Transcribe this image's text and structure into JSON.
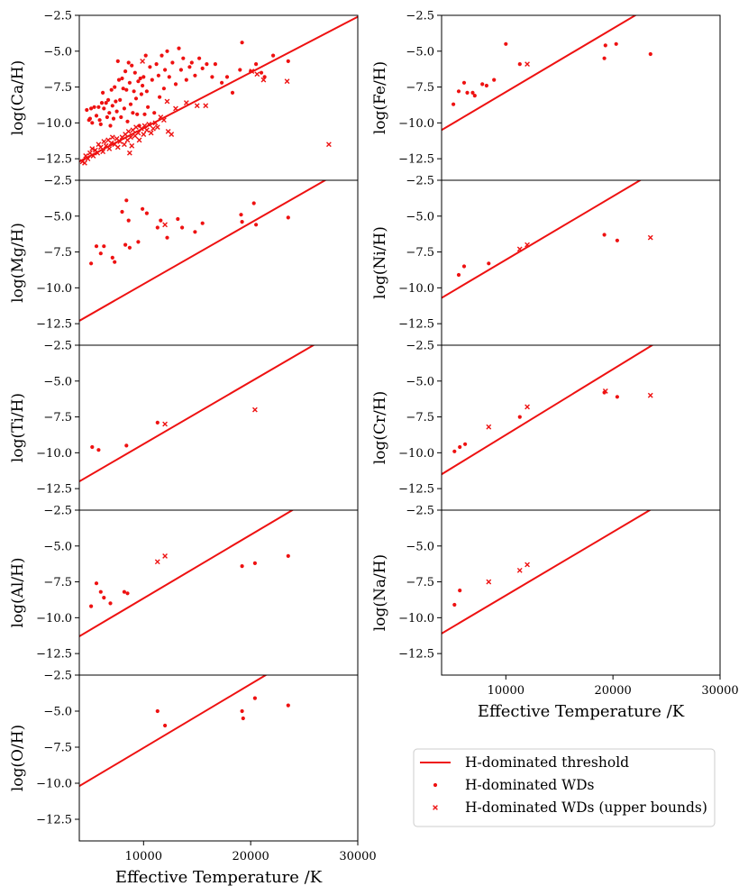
{
  "legend": {
    "threshold_label": "H-dominated threshold",
    "points_label": "H-dominated WDs",
    "upper_label": "H-dominated WDs (upper bounds)"
  },
  "colors": {
    "marker": "#ee1111",
    "line": "#ee1111",
    "axis": "#000000"
  },
  "chart_data": [
    {
      "type": "scatter",
      "id": "ca",
      "ylabel": "log(Ca/H)",
      "xlabel": "",
      "xlim": [
        4000,
        30000
      ],
      "ylim": [
        -14,
        -2.5
      ],
      "yticks": [
        -2.5,
        -5.0,
        -7.5,
        -10.0,
        -12.5
      ],
      "xticks": [],
      "threshold": [
        [
          4000,
          -12.7
        ],
        [
          30000,
          -2.6
        ]
      ],
      "points": [
        [
          4700,
          -9.1
        ],
        [
          4900,
          -9.8
        ],
        [
          5000,
          -9.7
        ],
        [
          5200,
          -10.0
        ],
        [
          5100,
          -9.0
        ],
        [
          5400,
          -8.9
        ],
        [
          5600,
          -9.5
        ],
        [
          5800,
          -8.9
        ],
        [
          5900,
          -9.8
        ],
        [
          6000,
          -10.1
        ],
        [
          6100,
          -8.6
        ],
        [
          6200,
          -7.9
        ],
        [
          6300,
          -9.0
        ],
        [
          6500,
          -8.6
        ],
        [
          6600,
          -9.6
        ],
        [
          6700,
          -8.4
        ],
        [
          6800,
          -9.3
        ],
        [
          6900,
          -10.2
        ],
        [
          7000,
          -7.7
        ],
        [
          7100,
          -8.8
        ],
        [
          7200,
          -9.7
        ],
        [
          7300,
          -7.5
        ],
        [
          7400,
          -8.5
        ],
        [
          7500,
          -9.2
        ],
        [
          7600,
          -5.7
        ],
        [
          7700,
          -7.0
        ],
        [
          7800,
          -8.4
        ],
        [
          7900,
          -9.6
        ],
        [
          8000,
          -6.9
        ],
        [
          8100,
          -7.6
        ],
        [
          8200,
          -9.0
        ],
        [
          8300,
          -6.4
        ],
        [
          8400,
          -7.7
        ],
        [
          8500,
          -9.9
        ],
        [
          8600,
          -5.8
        ],
        [
          8700,
          -7.2
        ],
        [
          8800,
          -8.7
        ],
        [
          8900,
          -6.0
        ],
        [
          9000,
          -9.3
        ],
        [
          9100,
          -7.8
        ],
        [
          9200,
          -6.5
        ],
        [
          9300,
          -8.3
        ],
        [
          9400,
          -9.4
        ],
        [
          9500,
          -7.1
        ],
        [
          9600,
          -10.2
        ],
        [
          9700,
          -6.9
        ],
        [
          9800,
          -8.0
        ],
        [
          9900,
          -7.4
        ],
        [
          10000,
          -6.8
        ],
        [
          10100,
          -9.4
        ],
        [
          10200,
          -5.3
        ],
        [
          10300,
          -7.8
        ],
        [
          10400,
          -8.9
        ],
        [
          10600,
          -6.1
        ],
        [
          10800,
          -7.0
        ],
        [
          11000,
          -9.3
        ],
        [
          11200,
          -5.9
        ],
        [
          11400,
          -6.7
        ],
        [
          11500,
          -8.2
        ],
        [
          11700,
          -5.3
        ],
        [
          11900,
          -7.6
        ],
        [
          12000,
          -6.3
        ],
        [
          12200,
          -5.0
        ],
        [
          12400,
          -6.8
        ],
        [
          12700,
          -5.8
        ],
        [
          13000,
          -7.3
        ],
        [
          13300,
          -4.8
        ],
        [
          13500,
          -6.3
        ],
        [
          13700,
          -5.5
        ],
        [
          14000,
          -7.0
        ],
        [
          14300,
          -6.1
        ],
        [
          14500,
          -5.8
        ],
        [
          14800,
          -6.7
        ],
        [
          15200,
          -5.5
        ],
        [
          15500,
          -6.2
        ],
        [
          15900,
          -5.9
        ],
        [
          16400,
          -6.8
        ],
        [
          16700,
          -5.9
        ],
        [
          17300,
          -7.2
        ],
        [
          17800,
          -6.8
        ],
        [
          18300,
          -7.9
        ],
        [
          19000,
          -6.3
        ],
        [
          19200,
          -4.4
        ],
        [
          20000,
          -6.4
        ],
        [
          20500,
          -5.9
        ],
        [
          21000,
          -6.5
        ],
        [
          21300,
          -6.8
        ],
        [
          22100,
          -5.3
        ],
        [
          23500,
          -5.7
        ]
      ],
      "upper": [
        [
          4300,
          -12.7
        ],
        [
          4500,
          -12.8
        ],
        [
          4600,
          -12.3
        ],
        [
          4800,
          -12.5
        ],
        [
          5000,
          -12.1
        ],
        [
          5200,
          -11.8
        ],
        [
          5300,
          -12.3
        ],
        [
          5500,
          -11.9
        ],
        [
          5700,
          -12.1
        ],
        [
          5800,
          -11.5
        ],
        [
          6000,
          -11.7
        ],
        [
          6200,
          -12.0
        ],
        [
          6300,
          -11.3
        ],
        [
          6500,
          -11.6
        ],
        [
          6700,
          -11.2
        ],
        [
          6800,
          -11.8
        ],
        [
          7000,
          -11.4
        ],
        [
          7100,
          -11.0
        ],
        [
          7300,
          -11.5
        ],
        [
          7500,
          -11.1
        ],
        [
          7600,
          -11.7
        ],
        [
          7800,
          -11.3
        ],
        [
          8000,
          -11.0
        ],
        [
          8200,
          -11.5
        ],
        [
          8300,
          -10.8
        ],
        [
          8500,
          -11.2
        ],
        [
          8600,
          -10.6
        ],
        [
          8800,
          -11.0
        ],
        [
          8900,
          -11.6
        ],
        [
          9000,
          -10.5
        ],
        [
          9200,
          -10.9
        ],
        [
          9300,
          -10.3
        ],
        [
          9500,
          -10.7
        ],
        [
          9600,
          -11.2
        ],
        [
          9800,
          -10.4
        ],
        [
          10000,
          -10.8
        ],
        [
          10100,
          -10.2
        ],
        [
          10300,
          -10.5
        ],
        [
          10500,
          -10.1
        ],
        [
          10700,
          -10.7
        ],
        [
          10900,
          -10.4
        ],
        [
          11100,
          -10.0
        ],
        [
          11300,
          -10.3
        ],
        [
          11600,
          -9.6
        ],
        [
          11900,
          -9.8
        ],
        [
          12200,
          -8.5
        ],
        [
          12300,
          -10.6
        ],
        [
          12600,
          -10.8
        ],
        [
          13000,
          -9.0
        ],
        [
          14000,
          -8.6
        ],
        [
          15000,
          -8.8
        ],
        [
          15800,
          -8.8
        ],
        [
          8700,
          -12.1
        ],
        [
          9900,
          -5.7
        ],
        [
          20100,
          -6.4
        ],
        [
          20600,
          -6.6
        ],
        [
          21200,
          -7.0
        ],
        [
          23400,
          -7.1
        ],
        [
          27300,
          -11.5
        ]
      ]
    },
    {
      "type": "scatter",
      "id": "fe",
      "ylabel": "log(Fe/H)",
      "xlabel": "",
      "xlim": [
        4000,
        30000
      ],
      "ylim": [
        -14,
        -2.5
      ],
      "yticks": [
        -2.5,
        -5.0,
        -7.5,
        -10.0,
        -12.5
      ],
      "xticks": [],
      "threshold": [
        [
          4000,
          -10.5
        ],
        [
          30000,
          1.0
        ]
      ],
      "points": [
        [
          5100,
          -8.7
        ],
        [
          5600,
          -7.8
        ],
        [
          6100,
          -7.2
        ],
        [
          6400,
          -7.9
        ],
        [
          6900,
          -7.9
        ],
        [
          7100,
          -8.1
        ],
        [
          7800,
          -7.3
        ],
        [
          8200,
          -7.4
        ],
        [
          8900,
          -7.0
        ],
        [
          10000,
          -4.5
        ],
        [
          11300,
          -5.9
        ],
        [
          19200,
          -5.5
        ],
        [
          19300,
          -4.6
        ],
        [
          20300,
          -4.5
        ],
        [
          23500,
          -5.2
        ]
      ],
      "upper": [
        [
          12000,
          -5.9
        ]
      ]
    },
    {
      "type": "scatter",
      "id": "mg",
      "ylabel": "log(Mg/H)",
      "xlabel": "",
      "xlim": [
        4000,
        30000
      ],
      "ylim": [
        -14,
        -2.5
      ],
      "yticks": [
        -2.5,
        -5.0,
        -7.5,
        -10.0,
        -12.5
      ],
      "xticks": [],
      "threshold": [
        [
          4000,
          -12.3
        ],
        [
          30000,
          -1.2
        ]
      ],
      "points": [
        [
          5100,
          -8.3
        ],
        [
          5600,
          -7.1
        ],
        [
          6000,
          -7.6
        ],
        [
          6300,
          -7.1
        ],
        [
          7100,
          -7.9
        ],
        [
          7300,
          -8.2
        ],
        [
          8000,
          -4.7
        ],
        [
          8300,
          -7.0
        ],
        [
          8400,
          -3.9
        ],
        [
          8600,
          -5.3
        ],
        [
          8700,
          -7.2
        ],
        [
          9500,
          -6.8
        ],
        [
          9900,
          -4.5
        ],
        [
          10300,
          -4.8
        ],
        [
          11300,
          -5.8
        ],
        [
          11600,
          -5.3
        ],
        [
          12200,
          -6.5
        ],
        [
          13200,
          -5.2
        ],
        [
          13600,
          -5.8
        ],
        [
          14800,
          -6.1
        ],
        [
          15500,
          -5.5
        ],
        [
          19100,
          -4.9
        ],
        [
          19200,
          -5.4
        ],
        [
          20300,
          -4.1
        ],
        [
          20500,
          -5.6
        ],
        [
          23500,
          -5.1
        ]
      ],
      "upper": [
        [
          12000,
          -5.6
        ]
      ]
    },
    {
      "type": "scatter",
      "id": "ni",
      "ylabel": "log(Ni/H)",
      "xlabel": "",
      "xlim": [
        4000,
        30000
      ],
      "ylim": [
        -14,
        -2.5
      ],
      "yticks": [
        -2.5,
        -5.0,
        -7.5,
        -10.0,
        -12.5
      ],
      "xticks": [],
      "threshold": [
        [
          4000,
          -10.7
        ],
        [
          30000,
          0.8
        ]
      ],
      "points": [
        [
          5600,
          -9.1
        ],
        [
          6100,
          -8.5
        ],
        [
          8400,
          -8.3
        ],
        [
          19200,
          -6.3
        ],
        [
          20400,
          -6.7
        ]
      ],
      "upper": [
        [
          11300,
          -7.3
        ],
        [
          12000,
          -7.0
        ],
        [
          23500,
          -6.5
        ]
      ]
    },
    {
      "type": "scatter",
      "id": "ti",
      "ylabel": "log(Ti/H)",
      "xlabel": "",
      "xlim": [
        4000,
        30000
      ],
      "ylim": [
        -14,
        -2.5
      ],
      "yticks": [
        -2.5,
        -5.0,
        -7.5,
        -10.0,
        -12.5
      ],
      "xticks": [],
      "threshold": [
        [
          4000,
          -12.0
        ],
        [
          30000,
          -0.7
        ]
      ],
      "points": [
        [
          5200,
          -9.6
        ],
        [
          5800,
          -9.8
        ],
        [
          8400,
          -9.5
        ],
        [
          11300,
          -7.9
        ]
      ],
      "upper": [
        [
          12000,
          -8.0
        ],
        [
          20400,
          -7.0
        ]
      ]
    },
    {
      "type": "scatter",
      "id": "cr",
      "ylabel": "log(Cr/H)",
      "xlabel": "",
      "xlim": [
        4000,
        30000
      ],
      "ylim": [
        -14,
        -2.5
      ],
      "yticks": [
        -2.5,
        -5.0,
        -7.5,
        -10.0,
        -12.5
      ],
      "xticks": [],
      "threshold": [
        [
          4000,
          -11.5
        ],
        [
          30000,
          0.4
        ]
      ],
      "points": [
        [
          5200,
          -9.9
        ],
        [
          5700,
          -9.6
        ],
        [
          6200,
          -9.4
        ],
        [
          11300,
          -7.5
        ],
        [
          19200,
          -5.8
        ],
        [
          20400,
          -6.1
        ]
      ],
      "upper": [
        [
          8400,
          -8.2
        ],
        [
          12000,
          -6.8
        ],
        [
          19300,
          -5.7
        ],
        [
          23500,
          -6.0
        ]
      ]
    },
    {
      "type": "scatter",
      "id": "al",
      "ylabel": "log(Al/H)",
      "xlabel": "",
      "xlim": [
        4000,
        30000
      ],
      "ylim": [
        -14,
        -2.5
      ],
      "yticks": [
        -2.5,
        -5.0,
        -7.5,
        -10.0,
        -12.5
      ],
      "xticks": [],
      "threshold": [
        [
          4000,
          -11.3
        ],
        [
          30000,
          0.2
        ]
      ],
      "points": [
        [
          5100,
          -9.2
        ],
        [
          5600,
          -7.6
        ],
        [
          6000,
          -8.2
        ],
        [
          6300,
          -8.6
        ],
        [
          6900,
          -9.0
        ],
        [
          8200,
          -8.2
        ],
        [
          8500,
          -8.3
        ],
        [
          19200,
          -6.4
        ],
        [
          20400,
          -6.2
        ],
        [
          23500,
          -5.7
        ]
      ],
      "upper": [
        [
          11300,
          -6.1
        ],
        [
          12000,
          -5.7
        ]
      ]
    },
    {
      "type": "scatter",
      "id": "na",
      "ylabel": "log(Na/H)",
      "xlabel": "Effective Temperature /K",
      "xlim": [
        4000,
        30000
      ],
      "ylim": [
        -14,
        -2.5
      ],
      "yticks": [
        -2.5,
        -5.0,
        -7.5,
        -10.0,
        -12.5
      ],
      "xticks": [
        10000,
        20000,
        30000
      ],
      "threshold": [
        [
          4000,
          -11.1
        ],
        [
          30000,
          0.4
        ]
      ],
      "points": [
        [
          5200,
          -9.1
        ],
        [
          5700,
          -8.1
        ]
      ],
      "upper": [
        [
          8400,
          -7.5
        ],
        [
          11300,
          -6.7
        ],
        [
          12000,
          -6.3
        ]
      ]
    },
    {
      "type": "scatter",
      "id": "o",
      "ylabel": "log(O/H)",
      "xlabel": "Effective Temperature /K",
      "xlim": [
        4000,
        30000
      ],
      "ylim": [
        -14,
        -2.5
      ],
      "yticks": [
        -2.5,
        -5.0,
        -7.5,
        -10.0,
        -12.5
      ],
      "xticks": [
        10000,
        20000,
        30000
      ],
      "threshold": [
        [
          4000,
          -10.2
        ],
        [
          30000,
          1.3
        ]
      ],
      "points": [
        [
          11300,
          -5.0
        ],
        [
          12000,
          -6.0
        ],
        [
          19200,
          -5.0
        ],
        [
          19300,
          -5.5
        ],
        [
          20400,
          -4.1
        ],
        [
          23500,
          -4.6
        ]
      ],
      "upper": []
    }
  ]
}
